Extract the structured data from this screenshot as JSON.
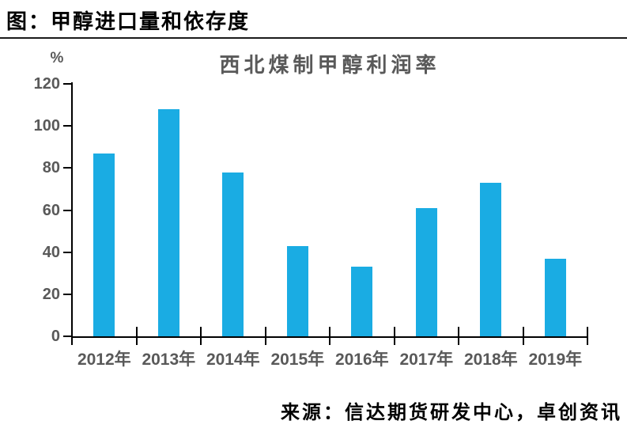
{
  "page": {
    "title": "图：甲醇进口量和依存度",
    "source": "来源：信达期货研发中心，卓创资讯"
  },
  "chart_data": {
    "type": "bar",
    "title": "西北煤制甲醇利润率",
    "unit_label": "%",
    "categories": [
      "2012年",
      "2013年",
      "2014年",
      "2015年",
      "2016年",
      "2017年",
      "2018年",
      "2019年"
    ],
    "values": [
      87,
      108,
      78,
      43,
      33,
      61,
      73,
      37
    ],
    "xlabel": "",
    "ylabel": "%",
    "ylim": [
      0,
      120
    ],
    "yticks": [
      0,
      20,
      40,
      60,
      80,
      100,
      120
    ],
    "grid": false,
    "legend_position": "none",
    "colors": {
      "bar": "#1AACE3",
      "axis": "#000000",
      "tick_text": "#595959",
      "title_text": "#595959"
    }
  }
}
